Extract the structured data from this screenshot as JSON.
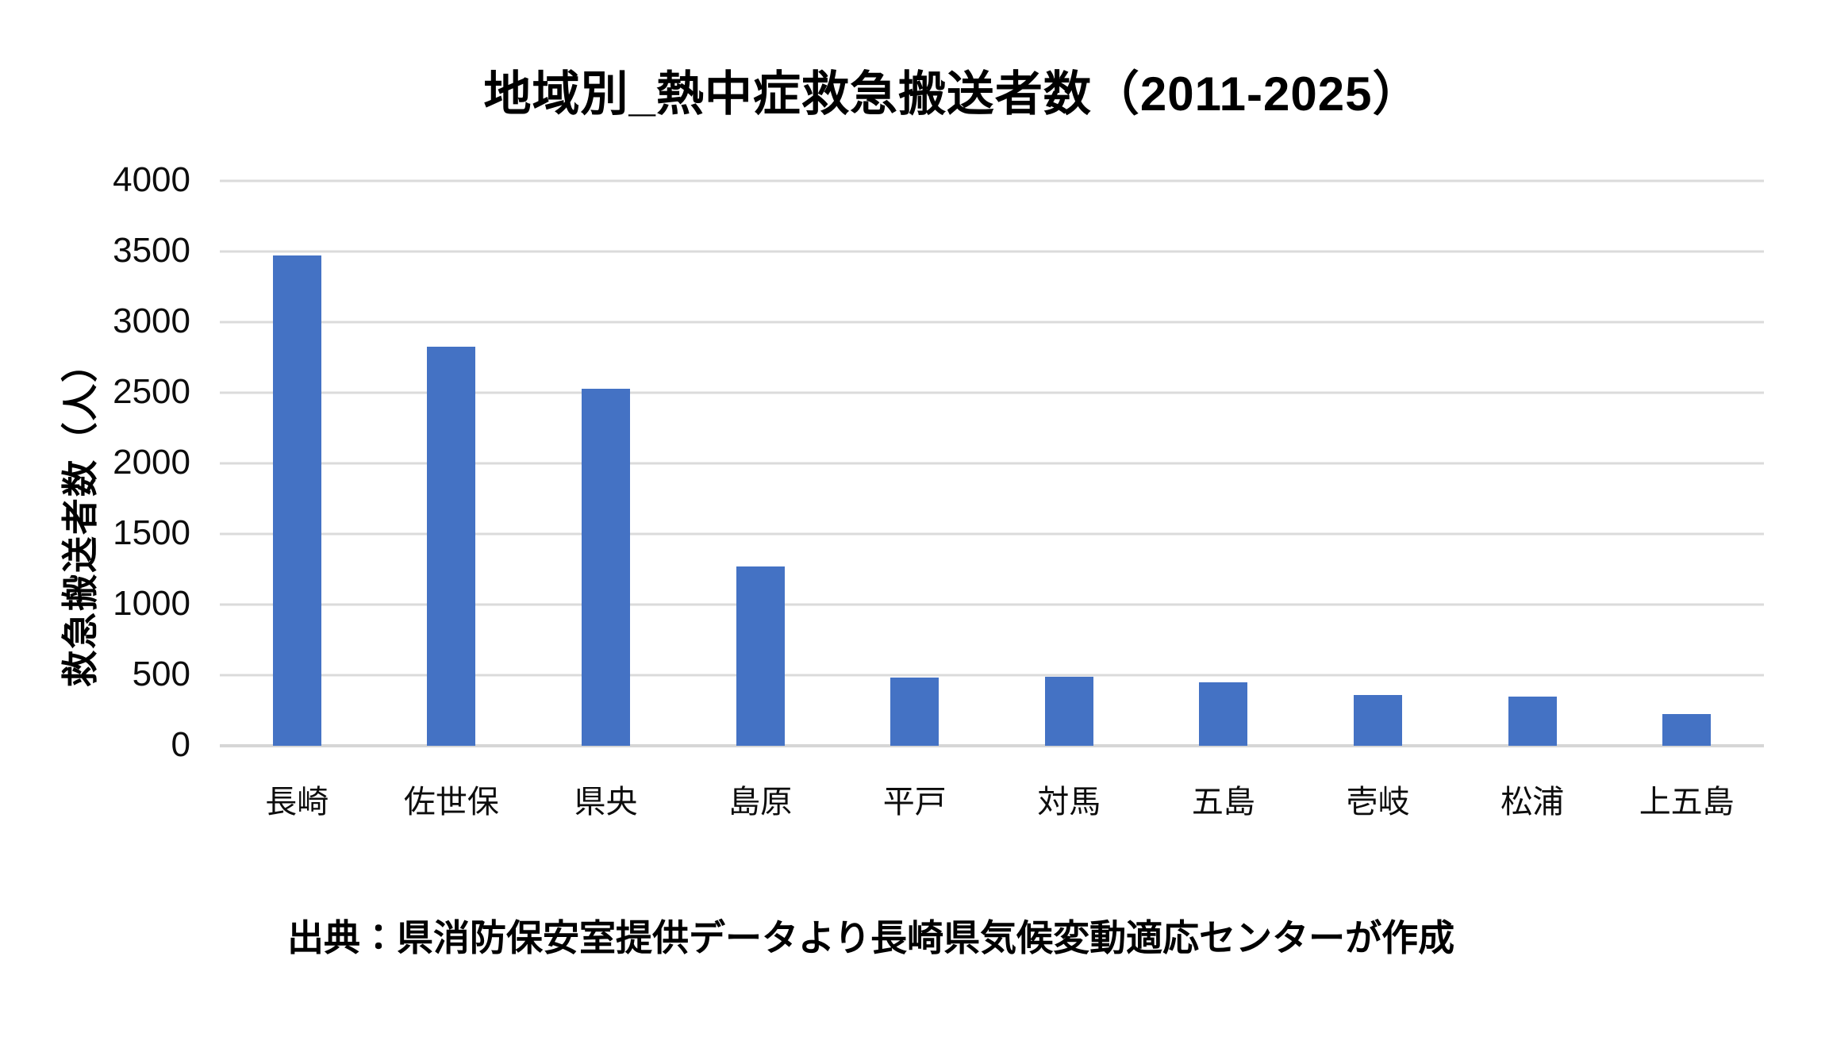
{
  "chart_data": {
    "type": "bar",
    "title": "地域別_熱中症救急搬送者数（2011-2025）",
    "categories": [
      "長崎",
      "佐世保",
      "県央",
      "島原",
      "平戸",
      "対馬",
      "五島",
      "壱岐",
      "松浦",
      "上五島"
    ],
    "values": [
      3470,
      2825,
      2530,
      1270,
      485,
      490,
      450,
      360,
      350,
      225
    ],
    "xlabel": "",
    "ylabel": "救急搬送者数（人）",
    "ylim": [
      0,
      4000
    ],
    "yticks": [
      0,
      500,
      1000,
      1500,
      2000,
      2500,
      3000,
      3500,
      4000
    ],
    "grid": "horizontal",
    "legend_position": "none",
    "bar_color": "#4472C4",
    "gridline_color": "#DBDBDB",
    "axis_line_color": "#D6D6D6",
    "background_color": "#FFFFFF",
    "text_color": "#000000"
  },
  "source_note": "出典：県消防保安室提供データより長崎県気候変動適応センターが作成"
}
